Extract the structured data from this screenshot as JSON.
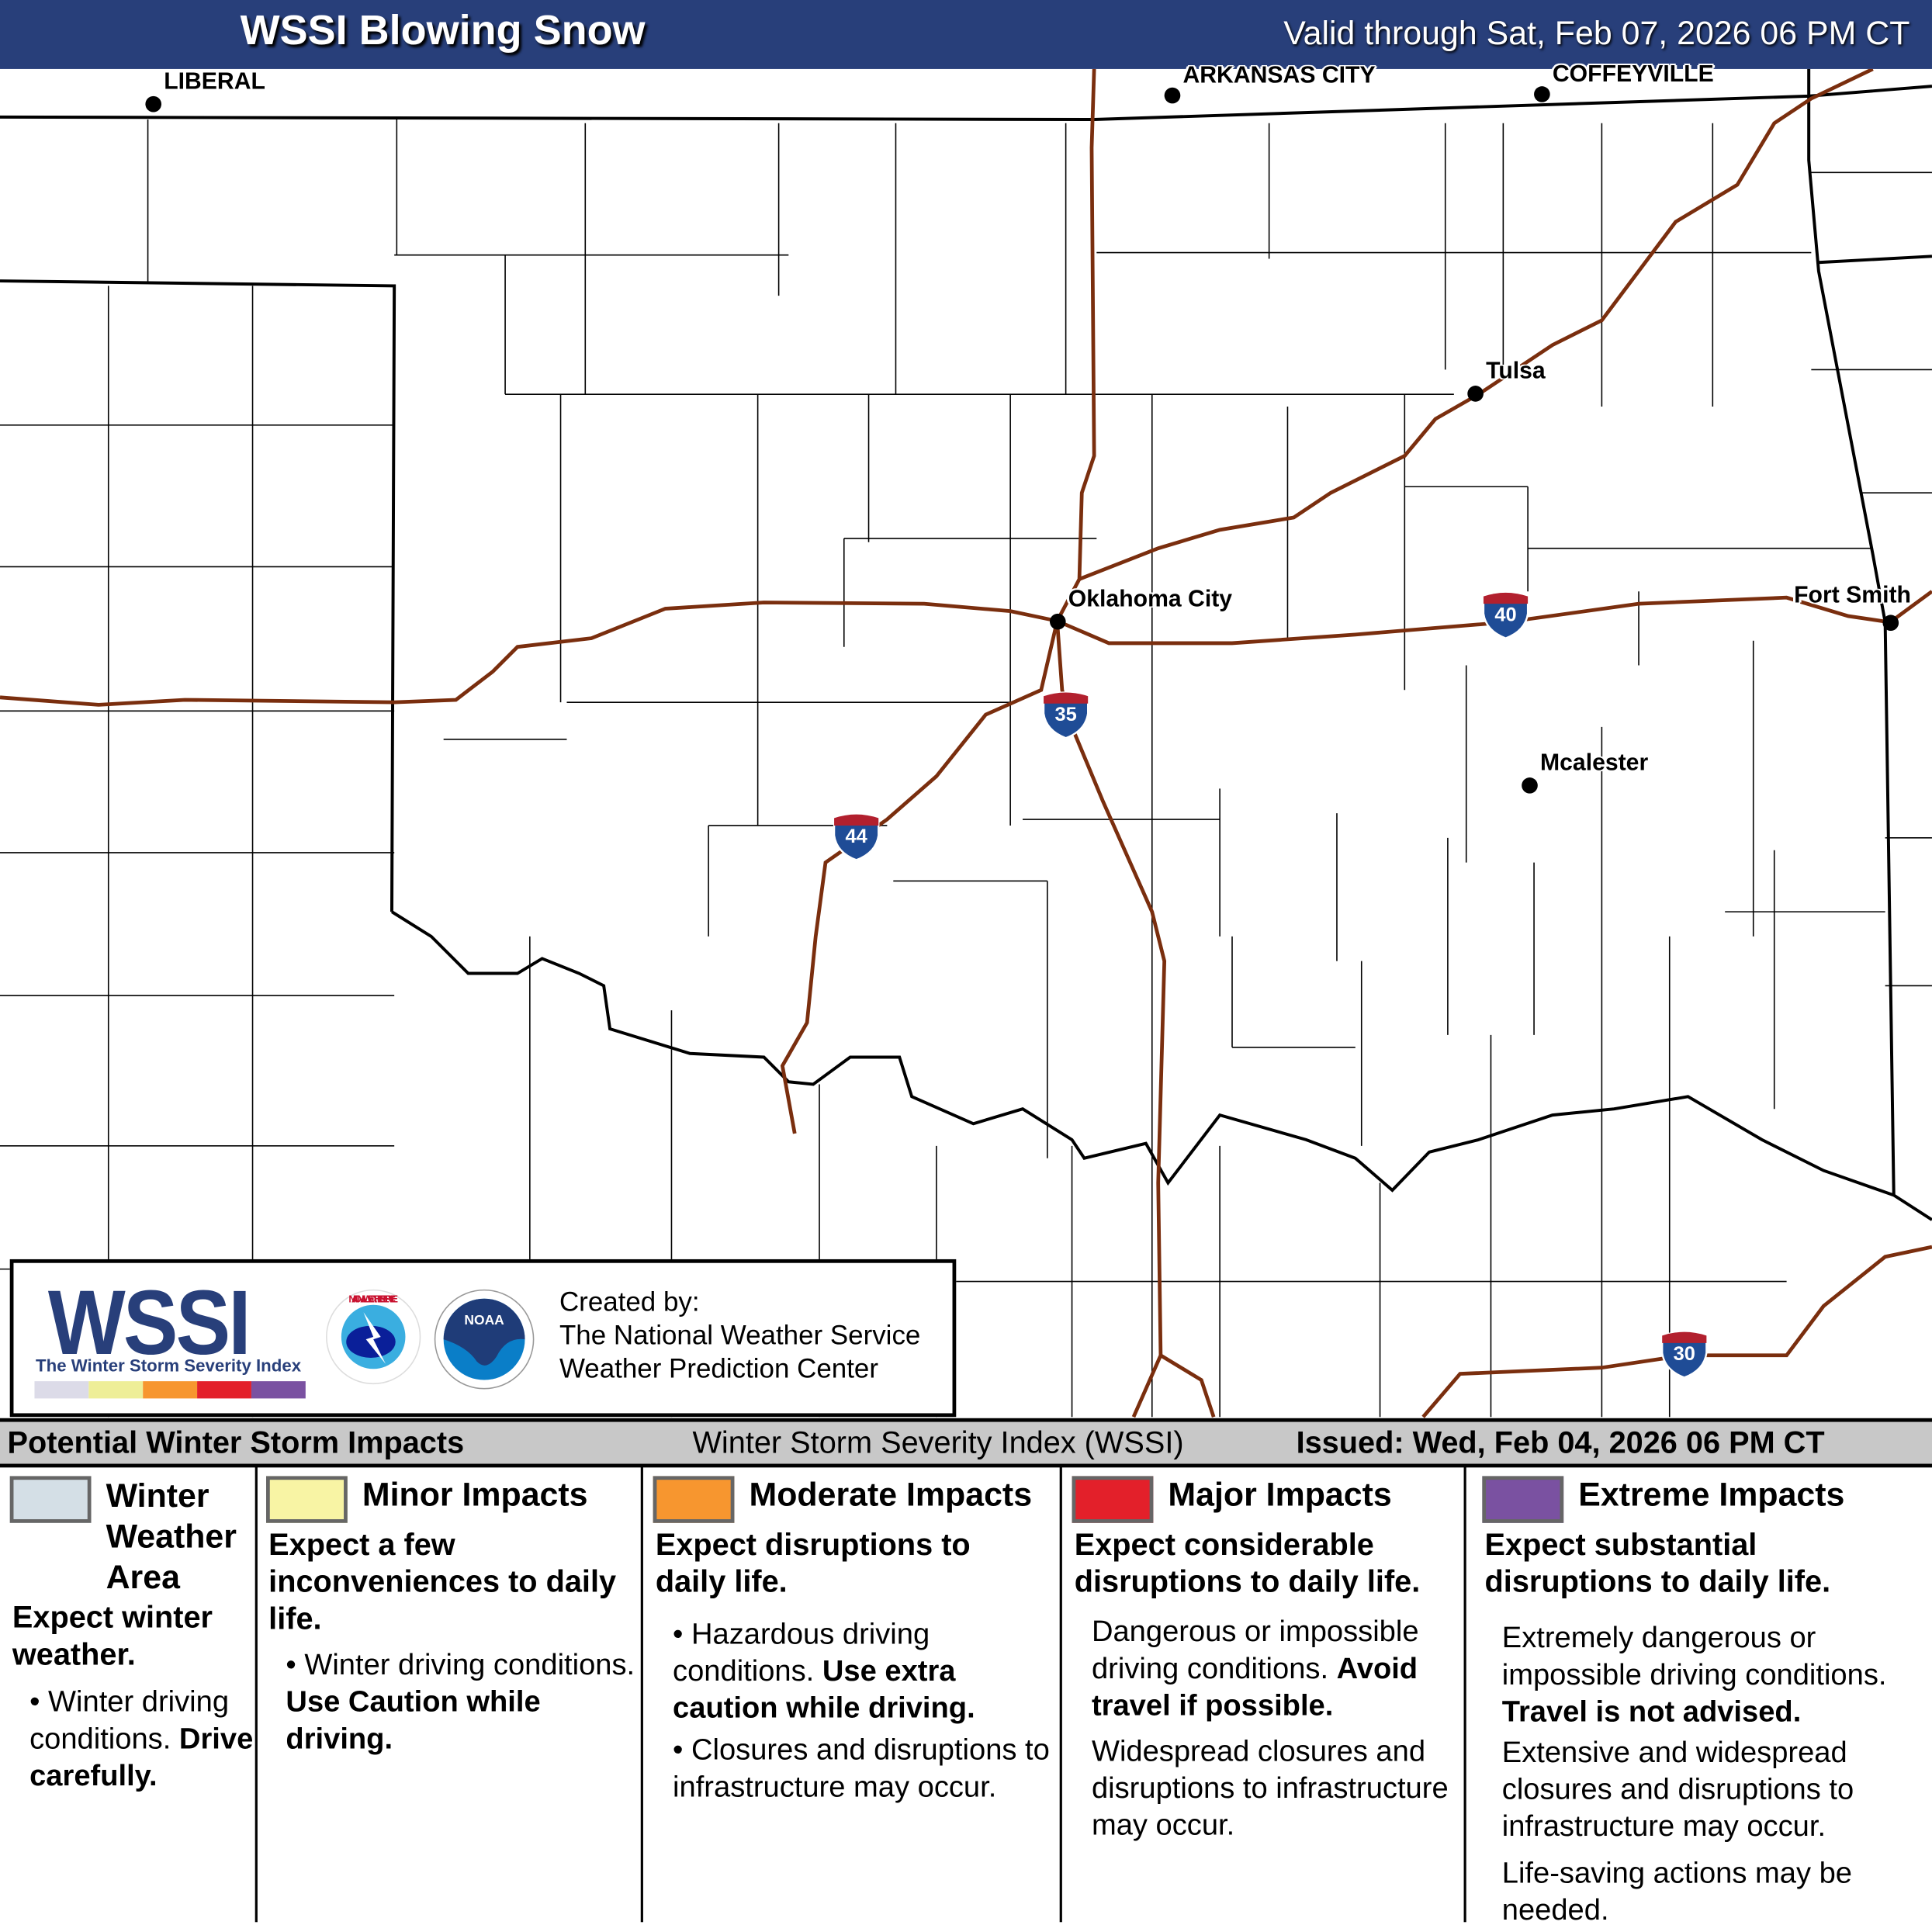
{
  "header": {
    "title": "WSSI Blowing Snow",
    "valid": "Valid through Sat, Feb 07, 2026 06 PM CT"
  },
  "cities": [
    {
      "name": "LIBERAL"
    },
    {
      "name": "ARKANSAS CITY"
    },
    {
      "name": "COFFEYVILLE"
    },
    {
      "name": "Tulsa"
    },
    {
      "name": "Oklahoma City"
    },
    {
      "name": "Fort Smith"
    },
    {
      "name": "Mcalester"
    }
  ],
  "shields": [
    "40",
    "35",
    "44",
    "30"
  ],
  "colors": {
    "header": "#283f7a",
    "road": "#7a2e0e",
    "winter": "#d4dfe6",
    "minor": "#f8f4a4",
    "moderate": "#f7962f",
    "major": "#e3202a",
    "extreme": "#7a51a1"
  },
  "logo": {
    "wordmark": "WSSI",
    "subtitle": "The Winter Storm Severity Index",
    "nws": "NATIONAL WEATHER SERVICE",
    "noaa": "NOAA",
    "created_by": "Created by:",
    "org1": "The National Weather Service",
    "org2": "Weather Prediction Center"
  },
  "legend": {
    "left": "Potential Winter Storm Impacts",
    "center": "Winter Storm Severity Index (WSSI)",
    "right": "Issued: Wed, Feb 04, 2026 06 PM CT",
    "columns": [
      {
        "title": "Winter Weather Area",
        "summary": "Expect winter weather.",
        "d1": "Winter driving conditions.",
        "d1b": "Drive carefully."
      },
      {
        "title": "Minor Impacts",
        "summary": "Expect a few inconveniences to daily life.",
        "d1": "Winter driving conditions.",
        "d1b": "Use Caution while driving."
      },
      {
        "title": "Moderate Impacts",
        "summary": "Expect disruptions to daily life.",
        "d1": "Hazardous driving conditions.",
        "d1b": "Use extra caution while driving.",
        "d2": "Closures and disruptions to infrastructure may occur."
      },
      {
        "title": "Major Impacts",
        "summary": "Expect considerable disruptions to daily life.",
        "d1": "Dangerous or impossible driving conditions.",
        "d1b": "Avoid travel if possible.",
        "d2": "Widespread closures and disruptions to infrastructure may occur."
      },
      {
        "title": "Extreme Impacts",
        "summary": "Expect substantial disruptions to daily life.",
        "d1": "Extremely dangerous or impossible driving conditions.",
        "d1b": "Travel is not advised.",
        "d2": "Extensive and widespread closures and disruptions to infrastructure may occur.",
        "d3": "Life-saving actions may be needed."
      }
    ]
  }
}
